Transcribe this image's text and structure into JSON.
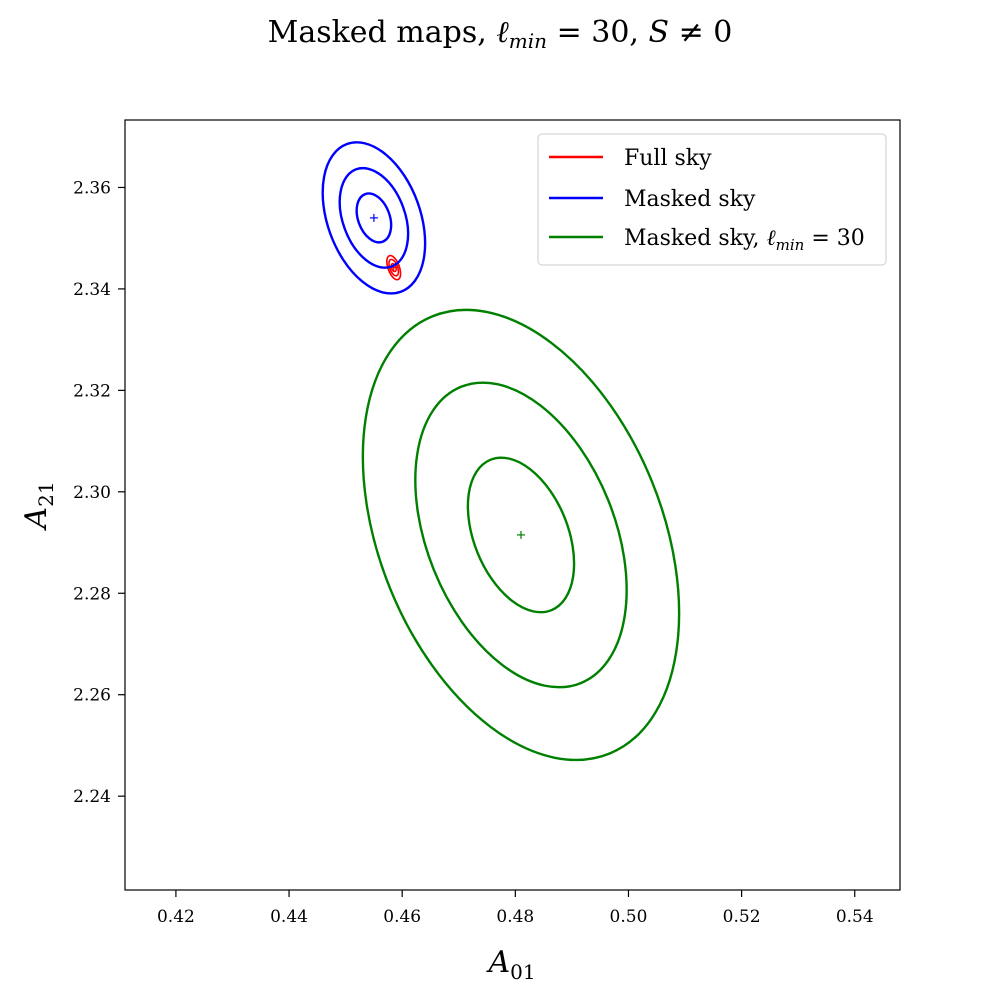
{
  "chart_data": {
    "type": "contour",
    "title": "Masked maps, ℓmin = 30, S ≠ 0",
    "xlabel": "A01",
    "ylabel": "A21",
    "xlim": [
      0.411,
      0.548
    ],
    "ylim": [
      2.2215,
      2.3733
    ],
    "xticks": [
      0.42,
      0.44,
      0.46,
      0.48,
      0.5,
      0.52,
      0.54
    ],
    "xtick_labels": [
      "0.42",
      "0.44",
      "0.46",
      "0.48",
      "0.50",
      "0.52",
      "0.54"
    ],
    "yticks": [
      2.24,
      2.26,
      2.28,
      2.3,
      2.32,
      2.34,
      2.36
    ],
    "ytick_labels": [
      "2.24",
      "2.26",
      "2.28",
      "2.30",
      "2.32",
      "2.34",
      "2.36"
    ],
    "grid": false,
    "legend_position": "top-right",
    "series": [
      {
        "name": "Full sky",
        "color": "#ff0000",
        "center": [
          0.4585,
          2.3442
        ],
        "contours": [
          {
            "rx": 0.0004,
            "ry": 0.0008,
            "rotation_deg": -20
          },
          {
            "rx": 0.0007,
            "ry": 0.0017,
            "rotation_deg": -20
          },
          {
            "rx": 0.001,
            "ry": 0.0025,
            "rotation_deg": -20
          }
        ]
      },
      {
        "name": "Masked sky",
        "color": "#0000ff",
        "center": [
          0.455,
          2.354
        ],
        "contours": [
          {
            "rx": 0.0028,
            "ry": 0.005,
            "rotation_deg": -20
          },
          {
            "rx": 0.0055,
            "ry": 0.0102,
            "rotation_deg": -20
          },
          {
            "rx": 0.0082,
            "ry": 0.0155,
            "rotation_deg": -20
          }
        ]
      },
      {
        "name": "Masked sky, ℓmin = 30",
        "color": "#008000",
        "center": [
          0.481,
          2.2915
        ],
        "contours": [
          {
            "rx": 0.0083,
            "ry": 0.016,
            "rotation_deg": -22
          },
          {
            "rx": 0.0166,
            "ry": 0.0315,
            "rotation_deg": -22
          },
          {
            "rx": 0.025,
            "ry": 0.0465,
            "rotation_deg": -22
          }
        ]
      }
    ]
  }
}
